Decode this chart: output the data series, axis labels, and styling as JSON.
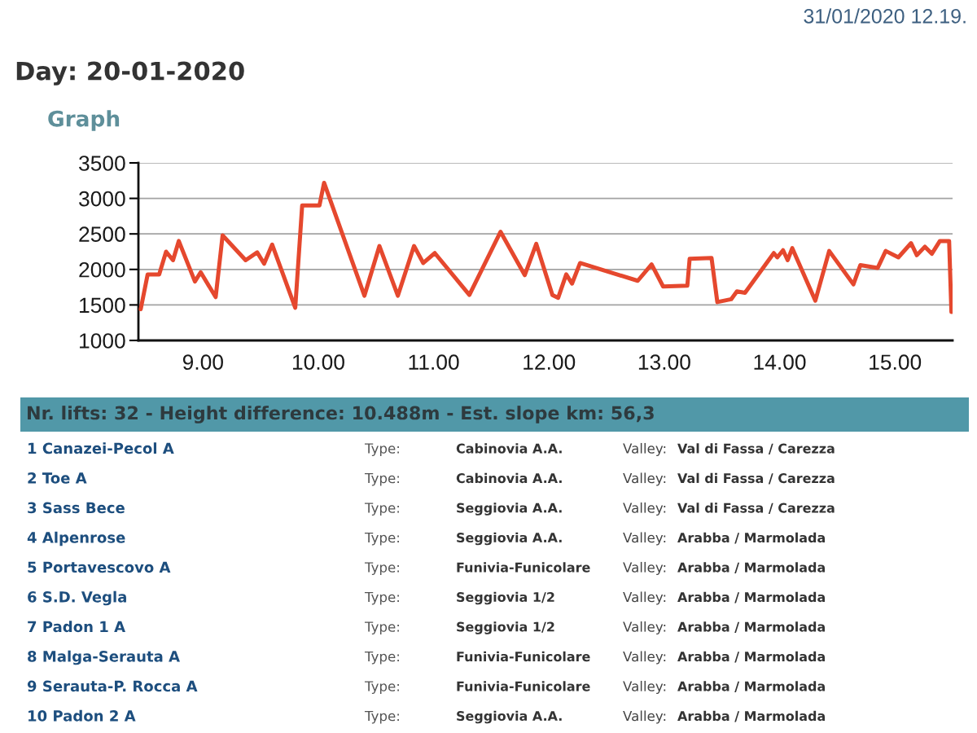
{
  "chart_data": {
    "type": "line",
    "title": "Day: 20-01-2020",
    "subtitle": "Graph",
    "x": [
      8.46,
      8.52,
      8.62,
      8.68,
      8.74,
      8.79,
      8.93,
      8.98,
      9.11,
      9.17,
      9.37,
      9.47,
      9.53,
      9.6,
      9.8,
      9.86,
      10.01,
      10.05,
      10.4,
      10.53,
      10.69,
      10.83,
      10.91,
      11.01,
      11.31,
      11.58,
      11.79,
      11.89,
      12.03,
      12.08,
      12.15,
      12.2,
      12.27,
      12.77,
      12.89,
      12.99,
      13.2,
      13.22,
      13.41,
      13.46,
      13.58,
      13.63,
      13.7,
      13.95,
      13.98,
      14.03,
      14.07,
      14.11,
      14.31,
      14.43,
      14.64,
      14.7,
      14.85,
      14.92,
      15.03,
      15.14,
      15.19,
      15.26,
      15.32,
      15.39,
      15.47,
      15.49
    ],
    "series": [
      {
        "color": "#e5482e",
        "values": [
          1440,
          1930,
          1930,
          2250,
          2130,
          2400,
          1830,
          1960,
          1610,
          2480,
          2130,
          2240,
          2080,
          2350,
          1460,
          2900,
          2900,
          3220,
          1630,
          2330,
          1630,
          2330,
          2090,
          2230,
          1640,
          2530,
          1920,
          2360,
          1640,
          1600,
          1930,
          1800,
          2090,
          1840,
          2070,
          1760,
          1770,
          2150,
          2160,
          1540,
          1580,
          1690,
          1670,
          2230,
          2170,
          2270,
          2130,
          2300,
          1560,
          2260,
          1790,
          2060,
          2020,
          2260,
          2170,
          2370,
          2200,
          2320,
          2220,
          2400,
          2400,
          1400
        ]
      }
    ],
    "xlim": [
      8.44,
      15.5
    ],
    "xticks": [
      {
        "value": 9,
        "label": "9.00"
      },
      {
        "value": 10,
        "label": "10.00"
      },
      {
        "value": 11,
        "label": "11.00"
      },
      {
        "value": 12,
        "label": "12.00"
      },
      {
        "value": 13,
        "label": "13.00"
      },
      {
        "value": 14,
        "label": "14.00"
      },
      {
        "value": 15,
        "label": "15.00"
      }
    ],
    "ylim": [
      1000,
      3500
    ],
    "yticks": [
      1000,
      1500,
      2000,
      2500,
      3000,
      3500
    ],
    "grid": "y",
    "line_style": "solid",
    "annotations": [
      "31/01/2020 12.19.",
      "Nr. lifts: 32 - Height difference: 10.488m - Est. slope km: 56,3",
      "1 Canazei-Pecol A",
      "Type:",
      "Cabinovia A.A.",
      "Valley:",
      "Val di Fassa / Carezza",
      "2 Toe A",
      "Type:",
      "Cabinovia A.A.",
      "Valley:",
      "Val di Fassa / Carezza",
      "3 Sass Bece",
      "Type:",
      "Seggiovia A.A.",
      "Valley:",
      "Val di Fassa / Carezza",
      "4 Alpenrose",
      "Type:",
      "Seggiovia A.A.",
      "Valley:",
      "Arabba / Marmolada",
      "5 Portavescovo A",
      "Type:",
      "Funivia-Funicolare",
      "Valley:",
      "Arabba / Marmolada",
      "6 S.D. Vegla",
      "Type:",
      "Seggiovia 1/2",
      "Valley:",
      "Arabba / Marmolada",
      "7 Padon 1 A",
      "Type:",
      "Seggiovia 1/2",
      "Valley:",
      "Arabba / Marmolada",
      "8 Malga-Serauta A",
      "Type:",
      "Funivia-Funicolare",
      "Valley:",
      "Arabba / Marmolada",
      "9 Serauta-P. Rocca A",
      "Type:",
      "Funivia-Funicolare",
      "Valley:",
      "Arabba / Marmolada",
      "10 Padon 2 A",
      "Type:",
      "Seggiovia A.A.",
      "Valley:",
      "Arabba / Marmolada"
    ]
  }
}
